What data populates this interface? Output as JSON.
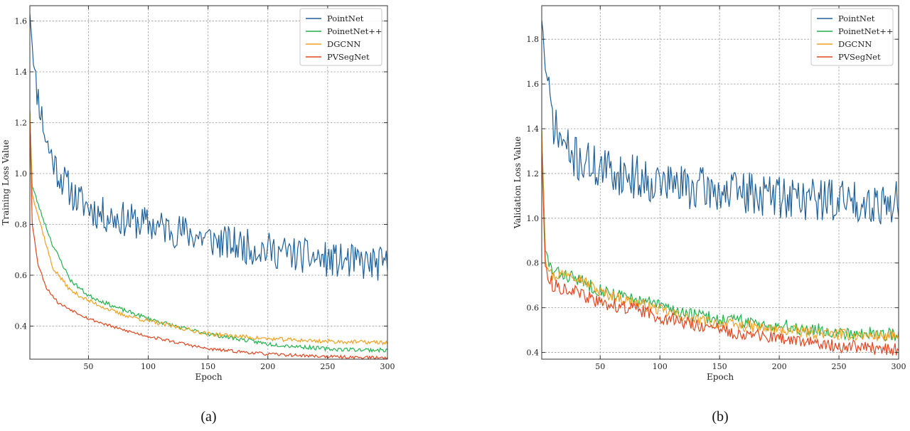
{
  "chart_data": [
    {
      "type": "line",
      "caption": "(a)",
      "xlabel": "Epoch",
      "ylabel": "Training Loss Value",
      "xlim": [
        1,
        300
      ],
      "ylim": [
        0.27,
        1.66
      ],
      "xticks": [
        50,
        100,
        150,
        200,
        250,
        300
      ],
      "yticks": [
        0.4,
        0.6,
        0.8,
        1.0,
        1.2,
        1.4,
        1.6
      ],
      "xtick_labels": [
        "50",
        "100",
        "150",
        "200",
        "250",
        "300"
      ],
      "ytick_labels": [
        "0.4",
        "0.6",
        "0.8",
        "1.0",
        "1.2",
        "1.4",
        "1.6"
      ],
      "grid": true,
      "legend_position": "top-right",
      "series": [
        {
          "name": "PointNet",
          "color": "#1f5f99",
          "start": 1.64,
          "end": 0.64,
          "tau": 45,
          "noise": 0.07,
          "seed": 11,
          "anchors": [
            [
              1,
              1.64
            ],
            [
              5,
              1.38
            ],
            [
              15,
              1.12
            ],
            [
              25,
              1.0
            ],
            [
              40,
              0.9
            ],
            [
              60,
              0.84
            ],
            [
              80,
              0.82
            ],
            [
              100,
              0.8
            ],
            [
              130,
              0.77
            ],
            [
              160,
              0.73
            ],
            [
              200,
              0.7
            ],
            [
              250,
              0.66
            ],
            [
              300,
              0.64
            ]
          ]
        },
        {
          "name": "PoinetNet++",
          "color": "#22b14c",
          "start": 1.25,
          "end": 0.3,
          "tau": 35,
          "noise": 0.008,
          "seed": 23,
          "anchors": [
            [
              1,
              1.25
            ],
            [
              3,
              0.95
            ],
            [
              10,
              0.85
            ],
            [
              20,
              0.72
            ],
            [
              35,
              0.58
            ],
            [
              50,
              0.52
            ],
            [
              75,
              0.47
            ],
            [
              100,
              0.43
            ],
            [
              130,
              0.39
            ],
            [
              150,
              0.37
            ],
            [
              200,
              0.33
            ],
            [
              250,
              0.31
            ],
            [
              300,
              0.305
            ]
          ]
        },
        {
          "name": "DGCNN",
          "color": "#f0a020",
          "start": 1.25,
          "end": 0.33,
          "tau": 30,
          "noise": 0.008,
          "seed": 37,
          "anchors": [
            [
              1,
              1.25
            ],
            [
              3,
              0.92
            ],
            [
              10,
              0.8
            ],
            [
              20,
              0.63
            ],
            [
              35,
              0.54
            ],
            [
              50,
              0.5
            ],
            [
              75,
              0.45
            ],
            [
              100,
              0.42
            ],
            [
              130,
              0.39
            ],
            [
              150,
              0.37
            ],
            [
              200,
              0.35
            ],
            [
              250,
              0.34
            ],
            [
              300,
              0.335
            ]
          ]
        },
        {
          "name": "PVSegNet",
          "color": "#e0451f",
          "start": 1.2,
          "end": 0.28,
          "tau": 30,
          "noise": 0.006,
          "seed": 53,
          "anchors": [
            [
              1,
              1.2
            ],
            [
              3,
              0.8
            ],
            [
              8,
              0.64
            ],
            [
              15,
              0.55
            ],
            [
              25,
              0.49
            ],
            [
              50,
              0.43
            ],
            [
              75,
              0.39
            ],
            [
              100,
              0.36
            ],
            [
              130,
              0.33
            ],
            [
              150,
              0.31
            ],
            [
              200,
              0.29
            ],
            [
              250,
              0.28
            ],
            [
              300,
              0.275
            ]
          ]
        }
      ]
    },
    {
      "type": "line",
      "caption": "(b)",
      "xlabel": "Epoch",
      "ylabel": "Validation Loss Value",
      "xlim": [
        1,
        300
      ],
      "ylim": [
        0.37,
        1.95
      ],
      "xticks": [
        50,
        100,
        150,
        200,
        250,
        300
      ],
      "yticks": [
        0.4,
        0.6,
        0.8,
        1.0,
        1.2,
        1.4,
        1.6,
        1.8
      ],
      "xtick_labels": [
        "50",
        "100",
        "150",
        "200",
        "250",
        "300"
      ],
      "ytick_labels": [
        "0.4",
        "0.6",
        "0.8",
        "1.0",
        "1.2",
        "1.4",
        "1.6",
        "1.8"
      ],
      "grid": true,
      "legend_position": "top-right",
      "series": [
        {
          "name": "PointNet",
          "color": "#1f5f99",
          "start": 1.9,
          "end": 1.08,
          "tau": 20,
          "noise": 0.1,
          "seed": 71,
          "anchors": [
            [
              1,
              1.9
            ],
            [
              5,
              1.6
            ],
            [
              12,
              1.4
            ],
            [
              25,
              1.28
            ],
            [
              50,
              1.22
            ],
            [
              100,
              1.16
            ],
            [
              150,
              1.12
            ],
            [
              200,
              1.1
            ],
            [
              250,
              1.08
            ],
            [
              300,
              1.07
            ]
          ]
        },
        {
          "name": "PoinetNet++",
          "color": "#22b14c",
          "start": 1.4,
          "end": 0.47,
          "tau": 30,
          "noise": 0.03,
          "seed": 83,
          "anchors": [
            [
              1,
              1.4
            ],
            [
              4,
              0.85
            ],
            [
              10,
              0.76
            ],
            [
              25,
              0.74
            ],
            [
              50,
              0.68
            ],
            [
              75,
              0.64
            ],
            [
              100,
              0.61
            ],
            [
              125,
              0.57
            ],
            [
              150,
              0.55
            ],
            [
              200,
              0.52
            ],
            [
              250,
              0.49
            ],
            [
              300,
              0.48
            ]
          ]
        },
        {
          "name": "DGCNN",
          "color": "#f0a020",
          "start": 1.4,
          "end": 0.46,
          "tau": 30,
          "noise": 0.025,
          "seed": 97,
          "anchors": [
            [
              1,
              1.4
            ],
            [
              4,
              0.82
            ],
            [
              10,
              0.74
            ],
            [
              25,
              0.76
            ],
            [
              50,
              0.67
            ],
            [
              75,
              0.63
            ],
            [
              100,
              0.59
            ],
            [
              125,
              0.55
            ],
            [
              150,
              0.53
            ],
            [
              200,
              0.5
            ],
            [
              250,
              0.48
            ],
            [
              300,
              0.47
            ]
          ]
        },
        {
          "name": "PVSegNet",
          "color": "#e0451f",
          "start": 1.3,
          "end": 0.42,
          "tau": 30,
          "noise": 0.03,
          "seed": 113,
          "anchors": [
            [
              1,
              1.3
            ],
            [
              4,
              0.78
            ],
            [
              10,
              0.7
            ],
            [
              25,
              0.68
            ],
            [
              50,
              0.62
            ],
            [
              75,
              0.6
            ],
            [
              100,
              0.56
            ],
            [
              125,
              0.53
            ],
            [
              150,
              0.5
            ],
            [
              200,
              0.46
            ],
            [
              250,
              0.43
            ],
            [
              300,
              0.41
            ]
          ]
        }
      ]
    }
  ]
}
